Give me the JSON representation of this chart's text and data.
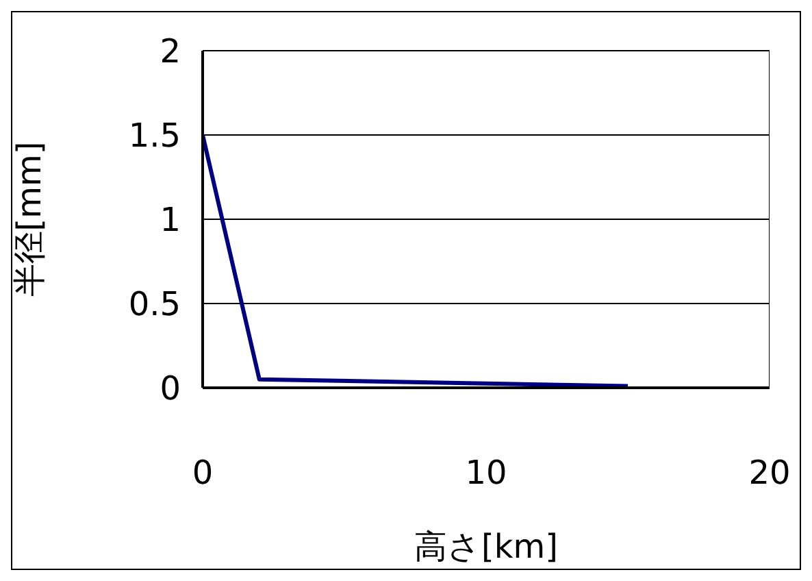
{
  "chart_data": {
    "type": "line",
    "xlabel": "高さ[km]",
    "ylabel": "半径[mm]",
    "x": [
      0,
      2,
      15
    ],
    "series": [
      {
        "color": "#000080",
        "values": [
          1.5,
          0.05,
          0.01
        ]
      }
    ],
    "xlim": [
      0,
      20
    ],
    "xticks": [
      0,
      10,
      20
    ],
    "ylim": [
      0,
      2
    ],
    "yticks": [
      0,
      0.5,
      1,
      1.5,
      2
    ],
    "grid": "y",
    "legend": false,
    "marker": "none",
    "line_style": "solid"
  }
}
